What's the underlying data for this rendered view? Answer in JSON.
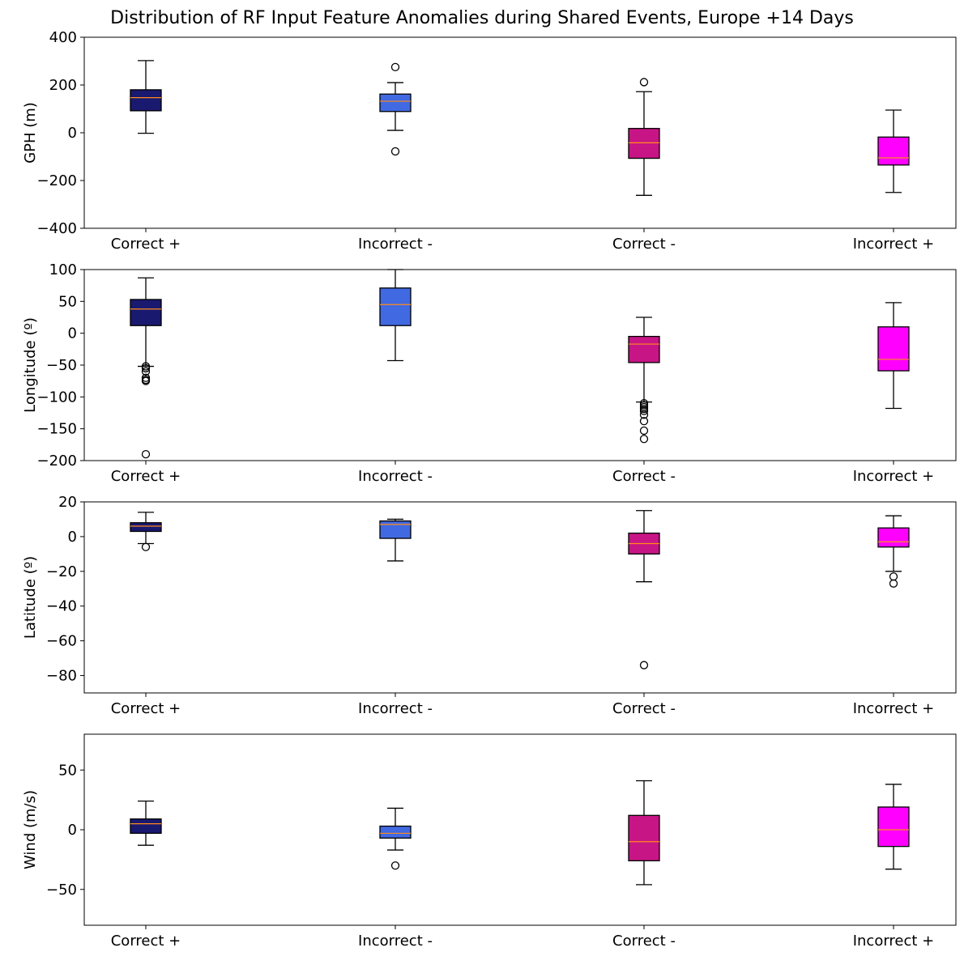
{
  "title": "Distribution of RF Input Feature Anomalies during Shared Events, Europe +14 Days",
  "categories": [
    "Correct +",
    "Incorrect -",
    "Correct -",
    "Incorrect +"
  ],
  "colors": {
    "Correct +": "#191970",
    "Incorrect -": "#4169e1",
    "Correct -": "#c71585",
    "Incorrect +": "#ff00ff",
    "median": "#ff8c1a"
  },
  "chart_data": [
    {
      "type": "box",
      "ylabel": "GPH (m)",
      "ylim": [
        -400,
        400
      ],
      "yticks": [
        -400,
        -200,
        0,
        200,
        400
      ],
      "boxes": [
        {
          "category": "Correct +",
          "whisker_low": -2,
          "q1": 92,
          "median": 147,
          "q3": 180,
          "whisker_high": 302,
          "fliers": []
        },
        {
          "category": "Incorrect -",
          "whisker_low": 10,
          "q1": 89,
          "median": 132,
          "q3": 162,
          "whisker_high": 210,
          "fliers": [
            275,
            -78
          ]
        },
        {
          "category": "Correct -",
          "whisker_low": -262,
          "q1": -107,
          "median": -42,
          "q3": 18,
          "whisker_high": 172,
          "fliers": [
            212
          ]
        },
        {
          "category": "Incorrect +",
          "whisker_low": -250,
          "q1": -135,
          "median": -105,
          "q3": -18,
          "whisker_high": 95,
          "fliers": []
        }
      ]
    },
    {
      "type": "box",
      "ylabel": "Longitude (º)",
      "ylim": [
        -200,
        100
      ],
      "yticks": [
        -200,
        -150,
        -100,
        -50,
        0,
        50,
        100
      ],
      "boxes": [
        {
          "category": "Correct +",
          "whisker_low": -52,
          "q1": 12,
          "median": 38,
          "q3": 53,
          "whisker_high": 87,
          "fliers": [
            -52,
            -55,
            -60,
            -70,
            -73,
            -75,
            -190
          ]
        },
        {
          "category": "Incorrect -",
          "whisker_low": -43,
          "q1": 12,
          "median": 45,
          "q3": 71,
          "whisker_high": 100,
          "fliers": []
        },
        {
          "category": "Correct -",
          "whisker_low": -108,
          "q1": -46,
          "median": -17,
          "q3": -5,
          "whisker_high": 25,
          "fliers": [
            -110,
            -113,
            -116,
            -119,
            -122,
            -128,
            -138,
            -153,
            -166
          ]
        },
        {
          "category": "Incorrect +",
          "whisker_low": -118,
          "q1": -59,
          "median": -41,
          "q3": 10,
          "whisker_high": 48,
          "fliers": []
        }
      ]
    },
    {
      "type": "box",
      "ylabel": "Latitude (º)",
      "ylim": [
        -90,
        20
      ],
      "yticks": [
        -80,
        -60,
        -40,
        -20,
        0,
        20
      ],
      "boxes": [
        {
          "category": "Correct +",
          "whisker_low": -4,
          "q1": 3,
          "median": 6,
          "q3": 8,
          "whisker_high": 14,
          "fliers": [
            -6
          ]
        },
        {
          "category": "Incorrect -",
          "whisker_low": -14,
          "q1": -1,
          "median": 7,
          "q3": 9,
          "whisker_high": 10,
          "fliers": []
        },
        {
          "category": "Correct -",
          "whisker_low": -26,
          "q1": -10,
          "median": -4,
          "q3": 2,
          "whisker_high": 15,
          "fliers": [
            -74
          ]
        },
        {
          "category": "Incorrect +",
          "whisker_low": -20,
          "q1": -6,
          "median": -3,
          "q3": 5,
          "whisker_high": 12,
          "fliers": [
            -23,
            -27
          ]
        }
      ]
    },
    {
      "type": "box",
      "ylabel": "Wind (m/s)",
      "ylim": [
        -80,
        80
      ],
      "yticks": [
        -50,
        0,
        50
      ],
      "boxes": [
        {
          "category": "Correct +",
          "whisker_low": -13,
          "q1": -3,
          "median": 5,
          "q3": 9,
          "whisker_high": 24,
          "fliers": []
        },
        {
          "category": "Incorrect -",
          "whisker_low": -17,
          "q1": -7,
          "median": -3,
          "q3": 3,
          "whisker_high": 18,
          "fliers": [
            -30
          ]
        },
        {
          "category": "Correct -",
          "whisker_low": -46,
          "q1": -26,
          "median": -10,
          "q3": 12,
          "whisker_high": 41,
          "fliers": []
        },
        {
          "category": "Incorrect +",
          "whisker_low": -33,
          "q1": -14,
          "median": 0,
          "q3": 19,
          "whisker_high": 38,
          "fliers": []
        }
      ]
    }
  ]
}
